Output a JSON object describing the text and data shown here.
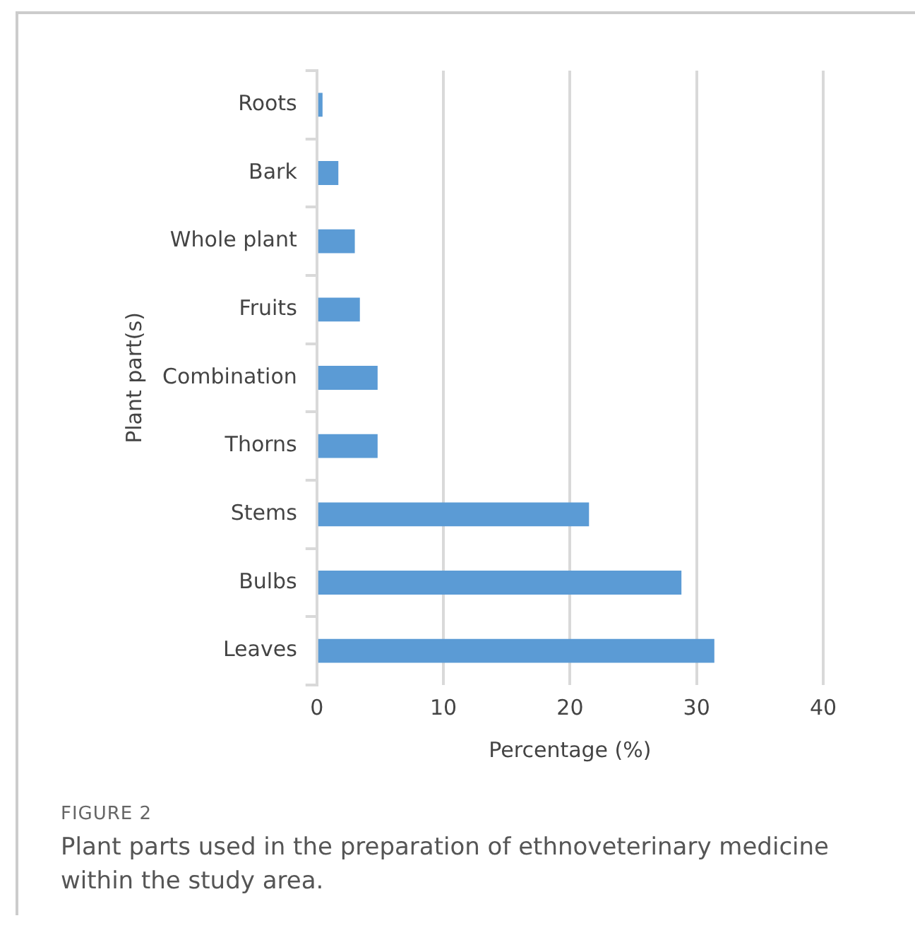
{
  "chart_data": {
    "type": "bar",
    "orientation": "horizontal",
    "xlabel": "Percentage (%)",
    "ylabel": "Plant part(s)",
    "categories": [
      "Roots",
      "Bark",
      "Whole plant",
      "Fruits",
      "Combination",
      "Thorns",
      "Stems",
      "Bulbs",
      "Leaves"
    ],
    "values": [
      0.45,
      1.7,
      3.0,
      3.4,
      4.8,
      4.8,
      21.5,
      28.8,
      31.4
    ],
    "color": "#5b9bd5",
    "xlim": [
      0,
      40
    ],
    "xticks": [
      0,
      10,
      20,
      30,
      40
    ],
    "grid": "x",
    "legend": false,
    "annotations": [
      "FIGURE 2",
      "Plant parts used in the preparation of ethnoveterinary medicine within the study area."
    ]
  }
}
